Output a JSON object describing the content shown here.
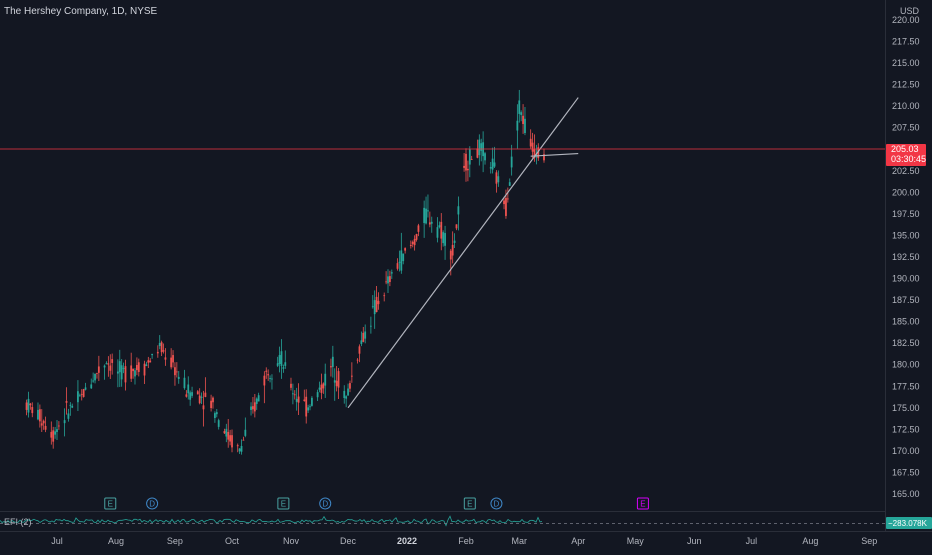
{
  "header": {
    "title": "The Hershey Company, 1D, NYSE",
    "currency": "USD"
  },
  "price_label": {
    "value": "205.03",
    "countdown": "03:30:45",
    "color": "#f23645"
  },
  "efi": {
    "label": "EFI (2)",
    "value": "−283.078K",
    "color": "#26a69a"
  },
  "colors": {
    "up": "#26a69a",
    "down": "#ef5350",
    "background": "#131722",
    "grid": "#1f2330",
    "trendline": "#b2b5be",
    "earnings_future": "#d500f9"
  },
  "chart_data": {
    "type": "candlestick",
    "title": "The Hershey Company, 1D, NYSE",
    "ylabel": "USD",
    "ylim": [
      162.5,
      222.5
    ],
    "y_ticks": [
      165.0,
      167.5,
      170.0,
      172.5,
      175.0,
      177.5,
      180.0,
      182.5,
      185.0,
      187.5,
      190.0,
      192.5,
      195.0,
      197.5,
      200.0,
      202.5,
      205.0,
      207.5,
      210.0,
      212.5,
      215.0,
      217.5,
      220.0
    ],
    "x_ticks": [
      "Jul",
      "Aug",
      "Sep",
      "Oct",
      "Nov",
      "Dec",
      "2022",
      "Feb",
      "Mar",
      "Apr",
      "May",
      "Jun",
      "Jul",
      "Aug",
      "Sep"
    ],
    "grid": false,
    "current_price": 205.03,
    "price_series": [
      {
        "x": "2021-06-15",
        "y": 175.5
      },
      {
        "x": "2021-06-22",
        "y": 174.0
      },
      {
        "x": "2021-06-29",
        "y": 172.0
      },
      {
        "x": "2021-07-06",
        "y": 174.5
      },
      {
        "x": "2021-07-13",
        "y": 176.0
      },
      {
        "x": "2021-07-20",
        "y": 178.5
      },
      {
        "x": "2021-07-27",
        "y": 180.5
      },
      {
        "x": "2021-08-03",
        "y": 179.0
      },
      {
        "x": "2021-08-10",
        "y": 179.5
      },
      {
        "x": "2021-08-17",
        "y": 180.0
      },
      {
        "x": "2021-08-24",
        "y": 182.0
      },
      {
        "x": "2021-08-31",
        "y": 180.0
      },
      {
        "x": "2021-09-07",
        "y": 177.0
      },
      {
        "x": "2021-09-14",
        "y": 176.5
      },
      {
        "x": "2021-09-21",
        "y": 175.5
      },
      {
        "x": "2021-09-28",
        "y": 172.0
      },
      {
        "x": "2021-10-05",
        "y": 170.0
      },
      {
        "x": "2021-10-12",
        "y": 174.5
      },
      {
        "x": "2021-10-19",
        "y": 179.0
      },
      {
        "x": "2021-10-26",
        "y": 181.0
      },
      {
        "x": "2021-11-02",
        "y": 177.0
      },
      {
        "x": "2021-11-09",
        "y": 175.0
      },
      {
        "x": "2021-11-16",
        "y": 177.0
      },
      {
        "x": "2021-11-23",
        "y": 180.0
      },
      {
        "x": "2021-11-30",
        "y": 176.0
      },
      {
        "x": "2021-12-07",
        "y": 182.0
      },
      {
        "x": "2021-12-14",
        "y": 186.0
      },
      {
        "x": "2021-12-21",
        "y": 189.0
      },
      {
        "x": "2021-12-28",
        "y": 192.0
      },
      {
        "x": "2022-01-04",
        "y": 194.0
      },
      {
        "x": "2022-01-11",
        "y": 197.5
      },
      {
        "x": "2022-01-18",
        "y": 196.0
      },
      {
        "x": "2022-01-25",
        "y": 193.0
      },
      {
        "x": "2022-02-01",
        "y": 203.5
      },
      {
        "x": "2022-02-08",
        "y": 205.0
      },
      {
        "x": "2022-02-15",
        "y": 203.0
      },
      {
        "x": "2022-02-22",
        "y": 198.5
      },
      {
        "x": "2022-03-01",
        "y": 210.0
      },
      {
        "x": "2022-03-08",
        "y": 205.0
      },
      {
        "x": "2022-03-14",
        "y": 205.03
      }
    ],
    "events": [
      {
        "type": "E",
        "x": "2021-07-29"
      },
      {
        "type": "D",
        "x": "2021-08-20"
      },
      {
        "type": "E",
        "x": "2021-10-28"
      },
      {
        "type": "D",
        "x": "2021-11-19"
      },
      {
        "type": "E",
        "x": "2022-02-03"
      },
      {
        "type": "D",
        "x": "2022-02-17"
      },
      {
        "type": "E",
        "x": "2022-05-05"
      }
    ],
    "trendlines": [
      {
        "from": {
          "x": "2021-12-01",
          "y": 175.0
        },
        "to": {
          "x": "2022-04-01",
          "y": 211.0
        }
      },
      {
        "from": {
          "x": "2022-03-07",
          "y": 204.2
        },
        "to": {
          "x": "2022-04-01",
          "y": 204.5
        }
      }
    ]
  }
}
